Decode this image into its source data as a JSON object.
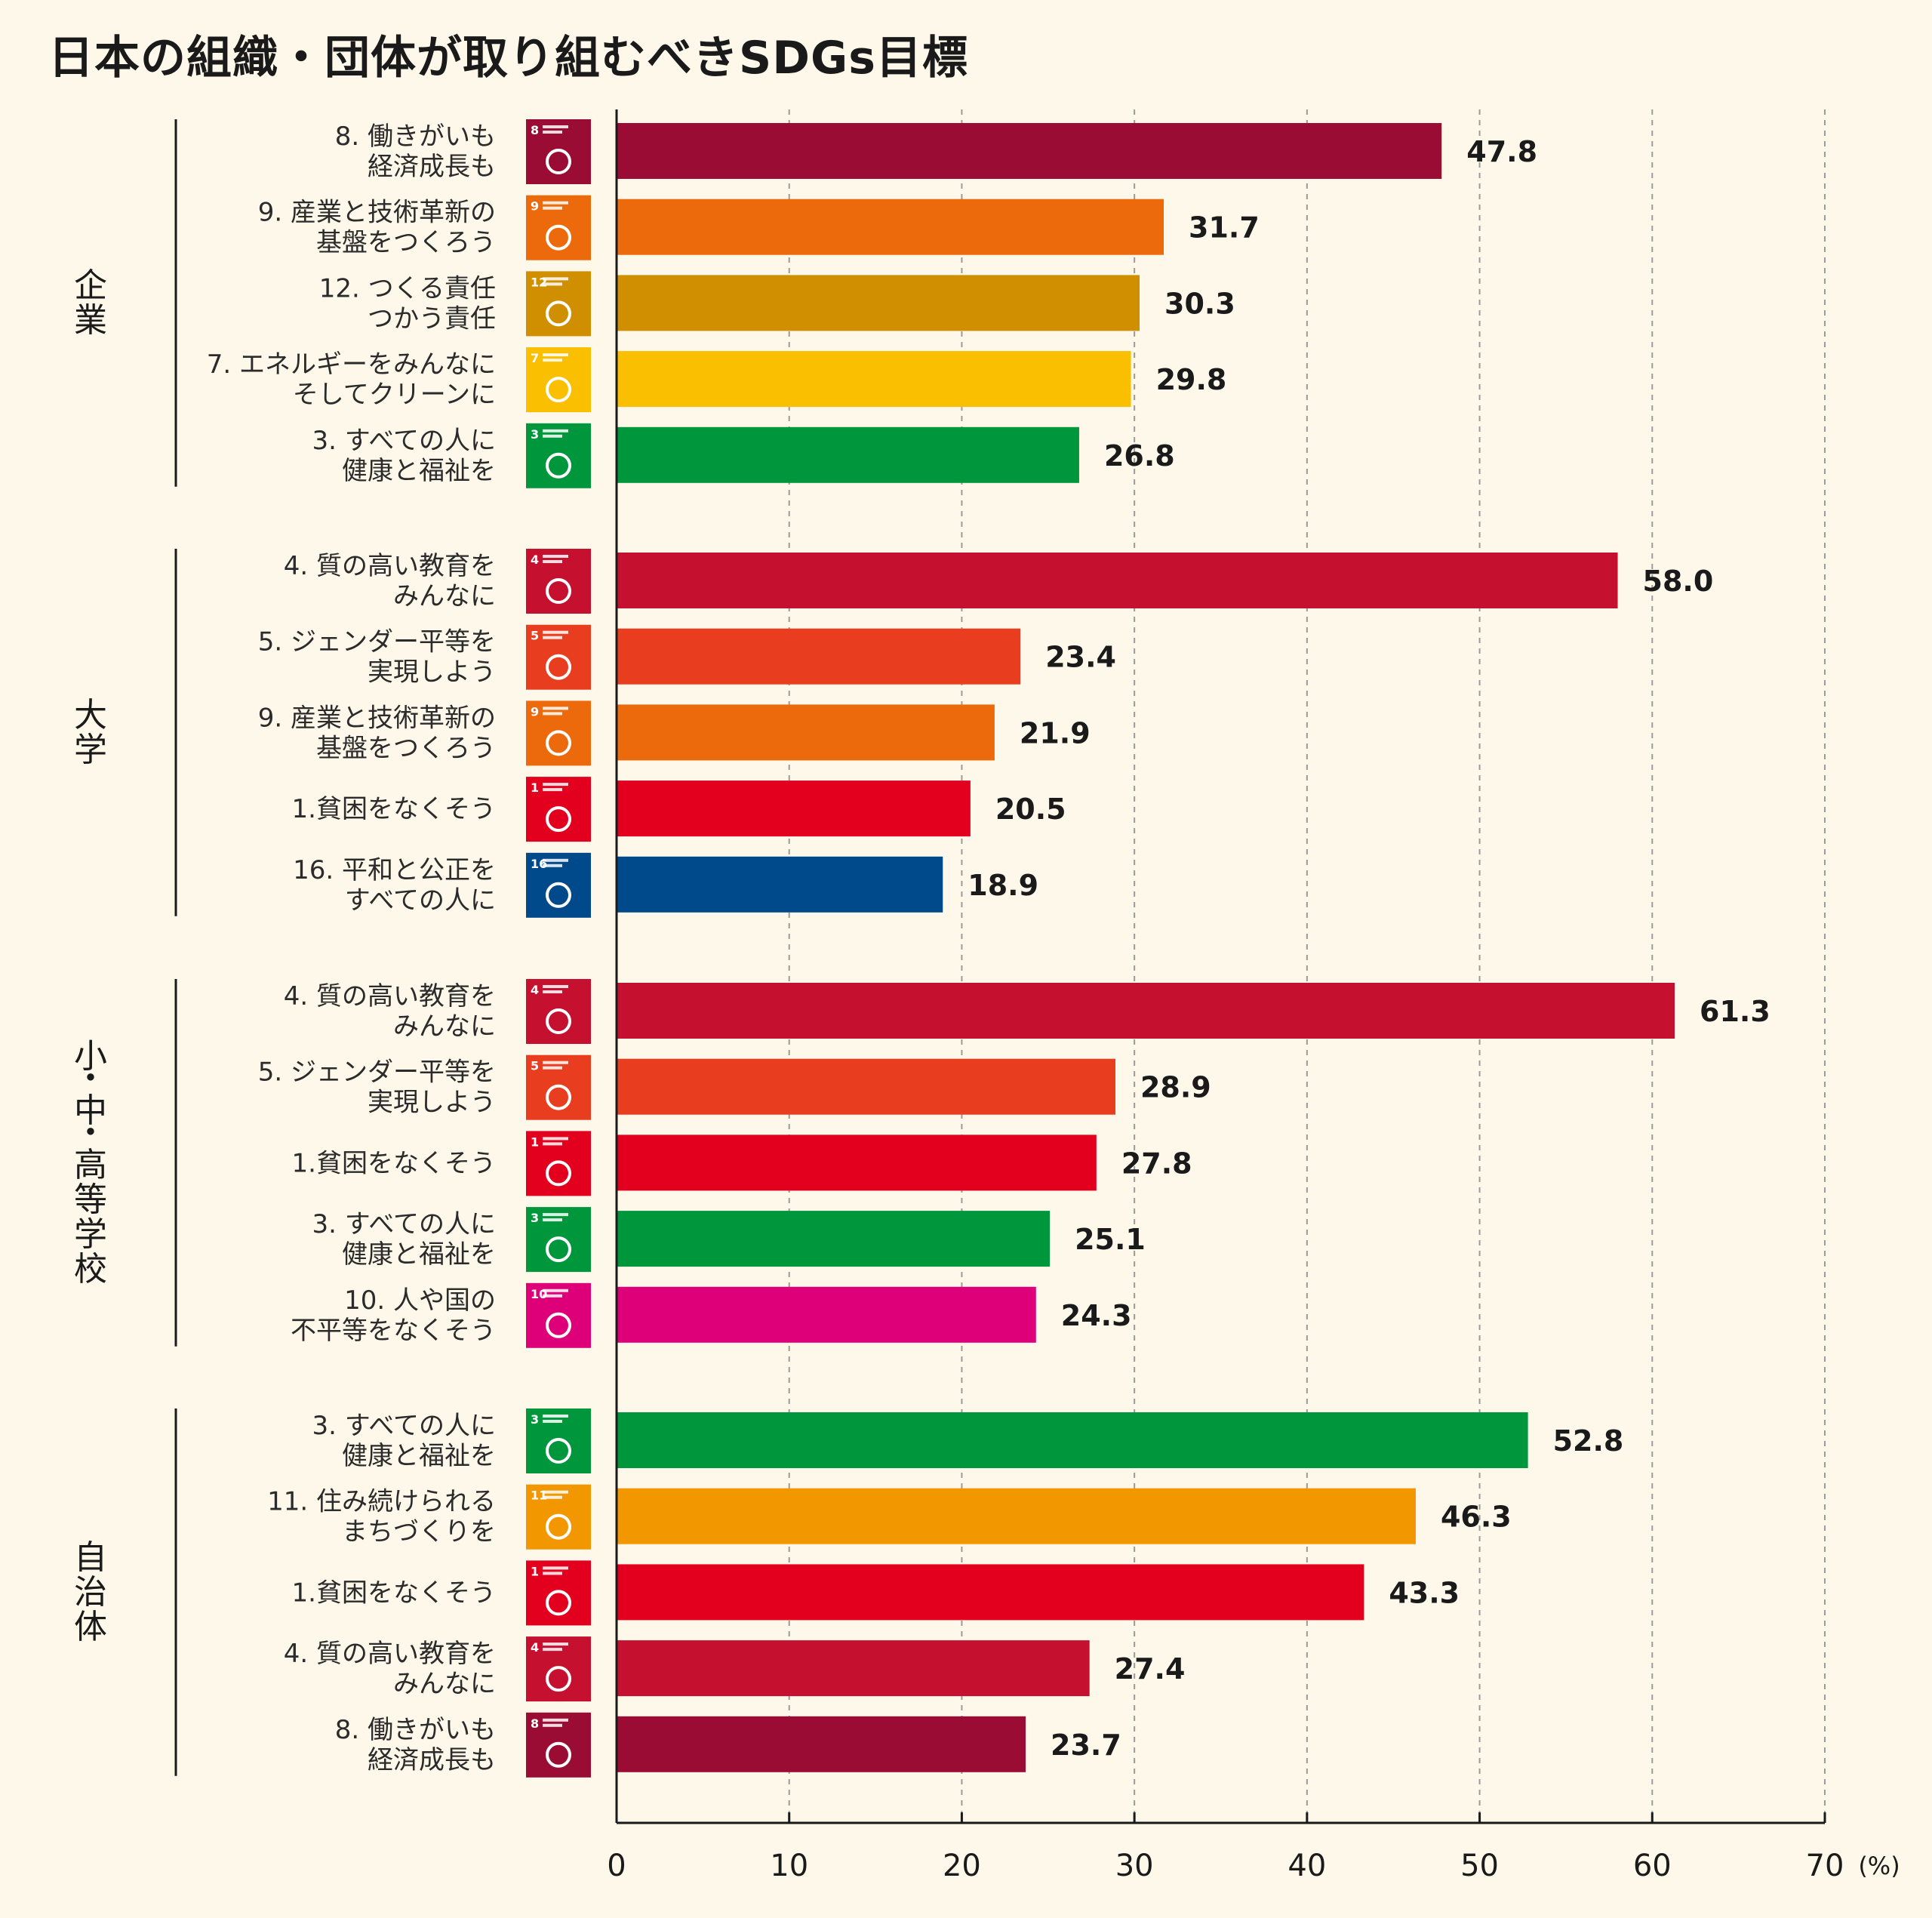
{
  "chart_data": {
    "type": "bar",
    "orientation": "horizontal",
    "title": "日本の組織・団体が取り組むべきSDGs目標",
    "unit": "(%)",
    "xlim": [
      0,
      70
    ],
    "xticks": [
      0,
      10,
      20,
      30,
      40,
      50,
      60,
      70
    ],
    "grid": "vertical dashed",
    "groups": [
      {
        "name": "企業",
        "items": [
          {
            "goal": 8,
            "label": [
              "8. 働きがいも",
              "経済成長も"
            ],
            "value": 47.8,
            "value_label": "47.8",
            "color": "#9a0c33"
          },
          {
            "goal": 9,
            "label": [
              "9. 産業と技術革新の",
              "基盤をつくろう"
            ],
            "value": 31.7,
            "value_label": "31.7",
            "color": "#ec6a0c"
          },
          {
            "goal": 12,
            "label": [
              "12. つくる責任",
              "つかう責任"
            ],
            "value": 30.3,
            "value_label": "30.3",
            "color": "#d08f00"
          },
          {
            "goal": 7,
            "label": [
              "7. エネルギーをみんなに",
              "そしてクリーンに"
            ],
            "value": 29.8,
            "value_label": "29.8",
            "color": "#f9bf00"
          },
          {
            "goal": 3,
            "label": [
              "3. すべての人に",
              "健康と福祉を"
            ],
            "value": 26.8,
            "value_label": "26.8",
            "color": "#00973c"
          }
        ]
      },
      {
        "name": "大学",
        "items": [
          {
            "goal": 4,
            "label": [
              "4. 質の高い教育を",
              "みんなに"
            ],
            "value": 58.0,
            "value_label": "58.0",
            "color": "#c5102f"
          },
          {
            "goal": 5,
            "label": [
              "5. ジェンダー平等を",
              "実現しよう"
            ],
            "value": 23.4,
            "value_label": "23.4",
            "color": "#e83d1e"
          },
          {
            "goal": 9,
            "label": [
              "9. 産業と技術革新の",
              "基盤をつくろう"
            ],
            "value": 21.9,
            "value_label": "21.9",
            "color": "#ec6a0c"
          },
          {
            "goal": 1,
            "label": [
              "1.貧困をなくそう"
            ],
            "value": 20.5,
            "value_label": "20.5",
            "color": "#e3001f"
          },
          {
            "goal": 16,
            "label": [
              "16. 平和と公正を",
              "すべての人に"
            ],
            "value": 18.9,
            "value_label": "18.9",
            "color": "#00498a"
          }
        ]
      },
      {
        "name": "小・中・高等学校",
        "items": [
          {
            "goal": 4,
            "label": [
              "4. 質の高い教育を",
              "みんなに"
            ],
            "value": 61.3,
            "value_label": "61.3",
            "color": "#c5102f"
          },
          {
            "goal": 5,
            "label": [
              "5. ジェンダー平等を",
              "実現しよう"
            ],
            "value": 28.9,
            "value_label": "28.9",
            "color": "#e83d1e"
          },
          {
            "goal": 1,
            "label": [
              "1.貧困をなくそう"
            ],
            "value": 27.8,
            "value_label": "27.8",
            "color": "#e3001f"
          },
          {
            "goal": 3,
            "label": [
              "3. すべての人に",
              "健康と福祉を"
            ],
            "value": 25.1,
            "value_label": "25.1",
            "color": "#00973c"
          },
          {
            "goal": 10,
            "label": [
              "10. 人や国の",
              "不平等をなくそう"
            ],
            "value": 24.3,
            "value_label": "24.3",
            "color": "#dd0079"
          }
        ]
      },
      {
        "name": "自治体",
        "items": [
          {
            "goal": 3,
            "label": [
              "3. すべての人に",
              "健康と福祉を"
            ],
            "value": 52.8,
            "value_label": "52.8",
            "color": "#00973c"
          },
          {
            "goal": 11,
            "label": [
              "11. 住み続けられる",
              "まちづくりを"
            ],
            "value": 46.3,
            "value_label": "46.3",
            "color": "#f39700"
          },
          {
            "goal": 1,
            "label": [
              "1.貧困をなくそう"
            ],
            "value": 43.3,
            "value_label": "43.3",
            "color": "#e3001f"
          },
          {
            "goal": 4,
            "label": [
              "4. 質の高い教育を",
              "みんなに"
            ],
            "value": 27.4,
            "value_label": "27.4",
            "color": "#c5102f"
          },
          {
            "goal": 8,
            "label": [
              "8. 働きがいも",
              "経済成長も"
            ],
            "value": 23.7,
            "value_label": "23.7",
            "color": "#9a0c33"
          }
        ]
      }
    ]
  }
}
